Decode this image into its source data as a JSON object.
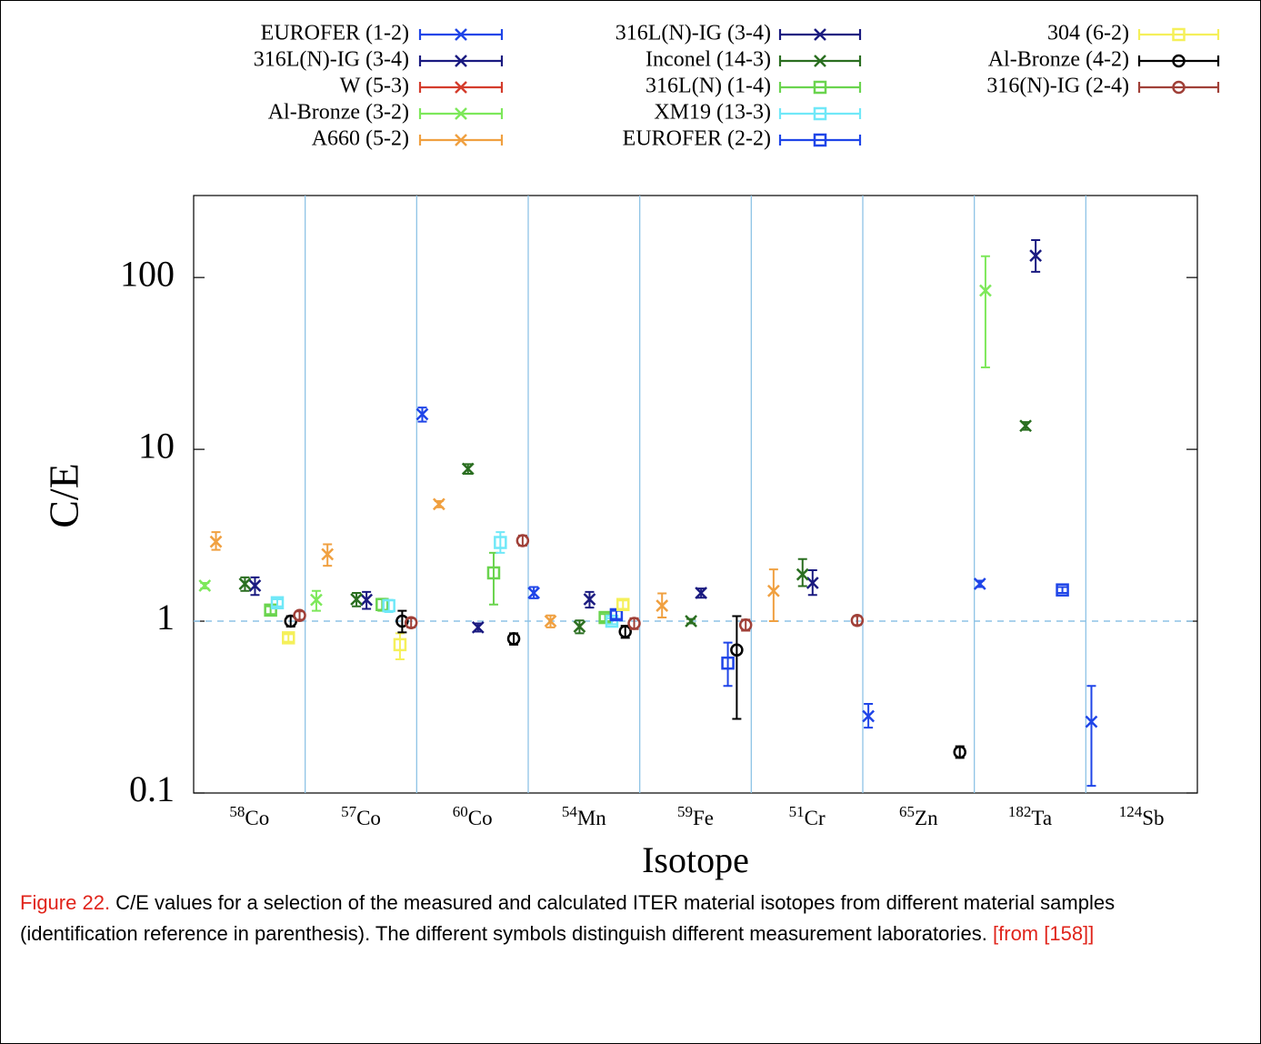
{
  "chart_data": {
    "type": "scatter",
    "y_label": "C/E",
    "x_label": "Isotope",
    "log_y": true,
    "ylim": [
      0.1,
      300
    ],
    "yticks": [
      0.1,
      1,
      10,
      100
    ],
    "reference_line": 1,
    "category_separators": true,
    "categories": [
      {
        "mass": "58",
        "element": "Co"
      },
      {
        "mass": "57",
        "element": "Co"
      },
      {
        "mass": "60",
        "element": "Co"
      },
      {
        "mass": "54",
        "element": "Mn"
      },
      {
        "mass": "59",
        "element": "Fe"
      },
      {
        "mass": "51",
        "element": "Cr"
      },
      {
        "mass": "65",
        "element": "Zn"
      },
      {
        "mass": "182",
        "element": "Ta"
      },
      {
        "mass": "124",
        "element": "Sb"
      }
    ],
    "series": [
      {
        "name": "EUROFER (1-2)",
        "color": "#1f45e8",
        "marker": "x",
        "values": [
          null,
          null,
          16,
          1.46,
          null,
          null,
          0.28,
          1.65,
          0.26
        ],
        "lower": [
          null,
          null,
          14.5,
          1.36,
          null,
          null,
          0.24,
          1.58,
          0.11
        ],
        "upper": [
          null,
          null,
          17.5,
          1.58,
          null,
          null,
          0.33,
          1.72,
          0.42
        ]
      },
      {
        "name": "316L(N)-IG (3-4)",
        "color": "#1a1a80",
        "marker": "x",
        "values": [
          1.61,
          1.33,
          0.92,
          1.34,
          1.46,
          1.67,
          null,
          134,
          null
        ],
        "lower": [
          1.42,
          1.18,
          0.87,
          1.2,
          1.37,
          1.42,
          null,
          108,
          null
        ],
        "upper": [
          1.8,
          1.48,
          0.97,
          1.48,
          1.55,
          1.98,
          null,
          165,
          null
        ]
      },
      {
        "name": "W (5-3)",
        "color": "#d43c2c",
        "marker": "x",
        "values": [
          null,
          null,
          null,
          null,
          null,
          null,
          null,
          null,
          null
        ],
        "lower": [
          null,
          null,
          null,
          null,
          null,
          null,
          null,
          null,
          null
        ],
        "upper": [
          null,
          null,
          null,
          null,
          null,
          null,
          null,
          null,
          null
        ]
      },
      {
        "name": "Al-Bronze (3-2)",
        "color": "#7de85a",
        "marker": "x",
        "values": [
          1.61,
          1.33,
          null,
          null,
          null,
          null,
          null,
          84,
          null
        ],
        "lower": [
          1.55,
          1.15,
          null,
          null,
          null,
          null,
          null,
          30,
          null
        ],
        "upper": [
          1.67,
          1.5,
          null,
          null,
          null,
          null,
          null,
          133,
          null
        ]
      },
      {
        "name": "A660 (5-2)",
        "color": "#f0a040",
        "marker": "x",
        "values": [
          2.9,
          2.45,
          4.8,
          1.0,
          1.23,
          1.5,
          null,
          null,
          null
        ],
        "lower": [
          2.6,
          2.1,
          4.6,
          0.92,
          1.05,
          1.0,
          null,
          null,
          null
        ],
        "upper": [
          3.3,
          2.8,
          5.0,
          1.08,
          1.45,
          2.0,
          null,
          null,
          null
        ]
      },
      {
        "name": "316L(N)-IG (3-4)",
        "color": "#1a1a80",
        "marker": "x",
        "values": [
          null,
          null,
          null,
          null,
          null,
          null,
          null,
          null,
          null
        ],
        "lower": [
          null,
          null,
          null,
          null,
          null,
          null,
          null,
          null,
          null
        ],
        "upper": [
          null,
          null,
          null,
          null,
          null,
          null,
          null,
          null,
          null
        ]
      },
      {
        "name": "Inconel (14-3)",
        "color": "#2a6e20",
        "marker": "x",
        "values": [
          1.65,
          1.34,
          7.7,
          0.93,
          1.0,
          1.87,
          null,
          13.7,
          null
        ],
        "lower": [
          1.5,
          1.22,
          7.2,
          0.85,
          0.97,
          1.6,
          null,
          13.0,
          null
        ],
        "upper": [
          1.8,
          1.46,
          8.2,
          1.01,
          1.03,
          2.3,
          null,
          14.4,
          null
        ]
      },
      {
        "name": "316L(N) (1-4)",
        "color": "#6ad44e",
        "marker": "square",
        "values": [
          1.16,
          1.25,
          1.91,
          1.05,
          null,
          null,
          null,
          null,
          null
        ],
        "lower": [
          1.1,
          1.15,
          1.25,
          1.0,
          null,
          null,
          null,
          null,
          null
        ],
        "upper": [
          1.22,
          1.35,
          2.5,
          1.1,
          null,
          null,
          null,
          null,
          null
        ]
      },
      {
        "name": "XM19 (13-3)",
        "color": "#70e8f8",
        "marker": "square",
        "values": [
          1.28,
          1.23,
          2.87,
          1.0,
          null,
          null,
          null,
          null,
          null
        ],
        "lower": [
          1.22,
          1.13,
          2.5,
          0.96,
          null,
          null,
          null,
          null,
          null
        ],
        "upper": [
          1.34,
          1.33,
          3.3,
          1.04,
          null,
          null,
          null,
          null,
          null
        ]
      },
      {
        "name": "EUROFER (2-2)",
        "color": "#1f45e8",
        "marker": "square",
        "values": [
          null,
          null,
          null,
          1.09,
          0.57,
          null,
          null,
          1.52,
          null
        ],
        "lower": [
          null,
          null,
          null,
          1.03,
          0.42,
          null,
          null,
          1.46,
          null
        ],
        "upper": [
          null,
          null,
          null,
          1.15,
          0.75,
          null,
          null,
          1.58,
          null
        ]
      },
      {
        "name": "304 (6-2)",
        "color": "#f5f05a",
        "marker": "square",
        "values": [
          0.8,
          0.73,
          null,
          1.25,
          null,
          null,
          null,
          null,
          null
        ],
        "lower": [
          0.76,
          0.6,
          null,
          1.18,
          null,
          null,
          null,
          null,
          null
        ],
        "upper": [
          0.84,
          0.85,
          null,
          1.32,
          null,
          null,
          null,
          null,
          null
        ]
      },
      {
        "name": "Al-Bronze (4-2)",
        "color": "#000000",
        "marker": "circle",
        "values": [
          1.0,
          1.0,
          0.79,
          0.87,
          0.68,
          null,
          0.173,
          null,
          null
        ],
        "lower": [
          0.93,
          0.86,
          0.73,
          0.8,
          0.27,
          null,
          0.16,
          null,
          null
        ],
        "upper": [
          1.07,
          1.15,
          0.85,
          0.94,
          1.07,
          null,
          0.187,
          null,
          null
        ]
      },
      {
        "name": "316(N)-IG (2-4)",
        "color": "#a04038",
        "marker": "circle",
        "values": [
          1.08,
          0.98,
          2.94,
          0.97,
          0.95,
          1.01,
          null,
          null,
          null
        ],
        "lower": [
          1.02,
          0.92,
          2.75,
          0.9,
          0.88,
          0.95,
          null,
          null,
          null
        ],
        "upper": [
          1.14,
          1.04,
          3.15,
          1.04,
          1.02,
          1.07,
          null,
          null,
          null
        ]
      }
    ]
  },
  "caption": {
    "label": "Figure 22.",
    "text": " C/E values for a selection of the measured and calculated ITER material isotopes from different material samples (identification reference in parenthesis). The different symbols distinguish different measurement laboratories. ",
    "source": "[from [158]]"
  }
}
